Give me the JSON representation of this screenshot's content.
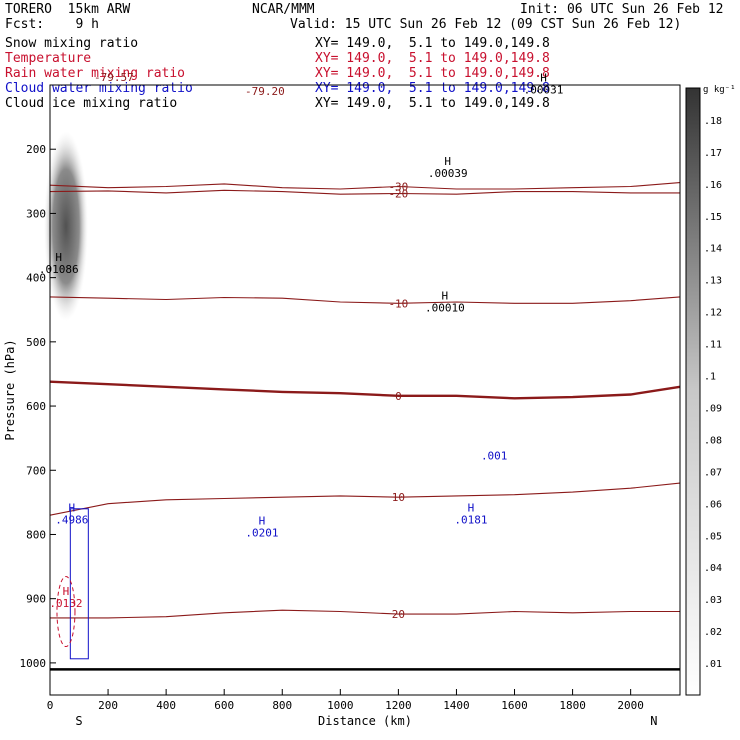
{
  "header": {
    "model": "TORERO  15km ARW",
    "org": "NCAR/MMM",
    "init": "Init: 06 UTC Sun 26 Feb 12",
    "fcst": "Fcst:    9 h",
    "valid": "Valid: 15 UTC Sun 26 Feb 12 (09 CST Sun 26 Feb 12)"
  },
  "fields": [
    {
      "label": "Snow mixing ratio",
      "xy": "XY= 149.0,  5.1 to 149.0,149.8",
      "color": "#000000"
    },
    {
      "label": "Temperature",
      "xy": "XY= 149.0,  5.1 to 149.0,149.8",
      "color": "#c8102e"
    },
    {
      "label": "Rain water mixing ratio",
      "xy": "XY= 149.0,  5.1 to 149.0,149.8",
      "color": "#c8102e"
    },
    {
      "label": "Cloud water mixing ratio",
      "xy": "XY= 149.0,  5.1 to 149.0,149.8",
      "color": "#1010c8"
    },
    {
      "label": "Cloud ice mixing ratio",
      "xy": "XY= 149.0,  5.1 to 149.0,149.8",
      "color": "#000000"
    }
  ],
  "chart_data": {
    "type": "contour",
    "xlabel": "Distance (km)",
    "ylabel": "Pressure (hPa)",
    "xlim": [
      0,
      2170
    ],
    "ylim": [
      1050,
      100
    ],
    "x_ticks": [
      0,
      200,
      400,
      600,
      800,
      1000,
      1200,
      1400,
      1600,
      1800,
      2000
    ],
    "y_ticks": [
      200,
      300,
      400,
      500,
      600,
      700,
      800,
      900,
      1000
    ],
    "y_tick_labels": [
      "200",
      "300",
      "400",
      "500",
      "600",
      "700",
      "800",
      "900",
      "1000"
    ],
    "endpoints": {
      "left": "S",
      "right": "N"
    },
    "temperature_contours": [
      {
        "value": -30,
        "label": "-30",
        "points": [
          [
            0,
            256
          ],
          [
            200,
            260
          ],
          [
            400,
            258
          ],
          [
            600,
            254
          ],
          [
            800,
            260
          ],
          [
            1000,
            262
          ],
          [
            1200,
            258
          ],
          [
            1400,
            262
          ],
          [
            1600,
            262
          ],
          [
            1800,
            260
          ],
          [
            2000,
            258
          ],
          [
            2170,
            252
          ]
        ]
      },
      {
        "value": -20,
        "label": "-20",
        "points": [
          [
            0,
            266
          ],
          [
            200,
            265
          ],
          [
            400,
            268
          ],
          [
            600,
            264
          ],
          [
            800,
            266
          ],
          [
            1000,
            270
          ],
          [
            1200,
            269
          ],
          [
            1400,
            270
          ],
          [
            1600,
            266
          ],
          [
            1800,
            266
          ],
          [
            2000,
            268
          ],
          [
            2170,
            268
          ]
        ]
      },
      {
        "value": -10,
        "label": "-10",
        "points": [
          [
            0,
            430
          ],
          [
            200,
            432
          ],
          [
            400,
            434
          ],
          [
            600,
            431
          ],
          [
            800,
            432
          ],
          [
            1000,
            438
          ],
          [
            1200,
            440
          ],
          [
            1400,
            438
          ],
          [
            1600,
            440
          ],
          [
            1800,
            440
          ],
          [
            2000,
            436
          ],
          [
            2170,
            430
          ]
        ]
      },
      {
        "value": 0,
        "label": "0",
        "points": [
          [
            0,
            562
          ],
          [
            200,
            566
          ],
          [
            400,
            570
          ],
          [
            600,
            574
          ],
          [
            800,
            578
          ],
          [
            1000,
            580
          ],
          [
            1200,
            584
          ],
          [
            1400,
            584
          ],
          [
            1600,
            588
          ],
          [
            1800,
            586
          ],
          [
            2000,
            582
          ],
          [
            2170,
            570
          ]
        ]
      },
      {
        "value": 10,
        "label": "10",
        "points": [
          [
            0,
            770
          ],
          [
            200,
            752
          ],
          [
            400,
            746
          ],
          [
            600,
            744
          ],
          [
            800,
            742
          ],
          [
            1000,
            740
          ],
          [
            1200,
            742
          ],
          [
            1400,
            740
          ],
          [
            1600,
            738
          ],
          [
            1800,
            734
          ],
          [
            2000,
            728
          ],
          [
            2170,
            720
          ]
        ]
      },
      {
        "value": 20,
        "label": "20",
        "points": [
          [
            0,
            930
          ],
          [
            200,
            930
          ],
          [
            400,
            928
          ],
          [
            600,
            922
          ],
          [
            800,
            918
          ],
          [
            1000,
            920
          ],
          [
            1200,
            924
          ],
          [
            1400,
            924
          ],
          [
            1600,
            920
          ],
          [
            1800,
            922
          ],
          [
            2000,
            920
          ],
          [
            2170,
            920
          ]
        ]
      }
    ],
    "maxima_labels": [
      {
        "field": "Cloud ice mixing ratio",
        "marker": "H",
        "value": ".00039",
        "x": 1370,
        "p": 240
      },
      {
        "field": "Cloud ice mixing ratio",
        "marker": "H",
        "value": ".00010",
        "x": 1360,
        "p": 450
      },
      {
        "field": "Cloud ice mixing ratio",
        "marker": "H",
        "value": ".00031",
        "x": 1700,
        "p": 110
      },
      {
        "field": "Snow mixing ratio",
        "marker": "H",
        "value": ".01086",
        "x": 30,
        "p": 390
      },
      {
        "field": "Cloud water mixing ratio",
        "marker": "",
        "value": ".001",
        "x": 1530,
        "p": 680
      },
      {
        "field": "Cloud water mixing ratio",
        "marker": "H",
        "value": ".0181",
        "x": 1450,
        "p": 780
      },
      {
        "field": "Cloud water mixing ratio",
        "marker": "H",
        "value": ".0201",
        "x": 730,
        "p": 800
      },
      {
        "field": "Cloud water mixing ratio",
        "marker": "H",
        "value": ".4986",
        "x": 75,
        "p": 780
      },
      {
        "field": "Rain water mixing ratio",
        "marker": "H",
        "value": ".0132",
        "x": 55,
        "p": 910
      }
    ],
    "top_labels": [
      "-79.57",
      "-79.20"
    ],
    "colorbar": {
      "unit": "g kg⁻¹",
      "ticks": [
        ".01",
        ".02",
        ".03",
        ".04",
        ".05",
        ".06",
        ".07",
        ".08",
        ".09",
        ".1",
        ".11",
        ".12",
        ".13",
        ".14",
        ".15",
        ".16",
        ".17",
        ".18"
      ]
    }
  }
}
